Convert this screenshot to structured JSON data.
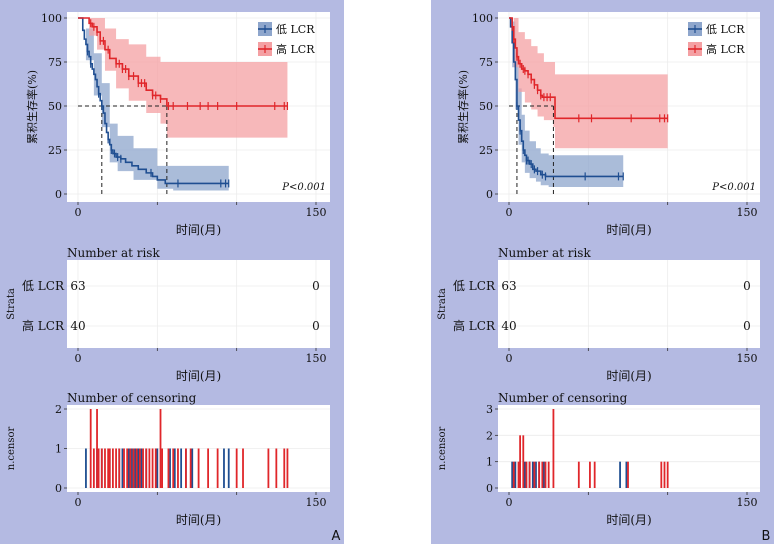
{
  "colors": {
    "low": "#1f4e91",
    "low_ci": "#8ea6cc",
    "high": "#e0262a",
    "high_ci": "#f4a0a3",
    "panel_bg": "#b4bae2"
  },
  "common": {
    "ylabel": "累积生存率(%)",
    "xlabel": "时间(月)",
    "legend": [
      "低 LCR",
      "高 LCR"
    ],
    "risk_title": "Number at risk",
    "risk_ylabel": "Strata",
    "strata": [
      "低 LCR",
      "高 LCR"
    ],
    "censor_title": "Number of censoring",
    "censor_ylabel": "n.censor",
    "pvalue": "P<0.001"
  },
  "chart_data": [
    {
      "type": "line",
      "panel_label": "A",
      "xlim": [
        0,
        150
      ],
      "ylim": [
        0,
        100
      ],
      "xticks": [
        0,
        50,
        100,
        150
      ],
      "xtick_labels": [
        "0",
        "",
        "",
        "150"
      ],
      "yticks": [
        0,
        25,
        50,
        75,
        100
      ],
      "median": {
        "low": 15,
        "high": 56
      },
      "series": [
        {
          "name": "低 LCR",
          "points": [
            [
              0,
              100
            ],
            [
              2,
              100
            ],
            [
              3,
              93
            ],
            [
              4,
              88
            ],
            [
              5,
              85
            ],
            [
              6,
              81
            ],
            [
              7,
              78
            ],
            [
              8,
              74
            ],
            [
              9,
              71
            ],
            [
              10,
              68
            ],
            [
              11,
              65
            ],
            [
              12,
              61
            ],
            [
              13,
              57
            ],
            [
              14,
              53
            ],
            [
              15,
              50
            ],
            [
              16,
              46
            ],
            [
              17,
              40
            ],
            [
              18,
              35
            ],
            [
              19,
              31
            ],
            [
              20,
              28
            ],
            [
              21,
              25
            ],
            [
              22,
              23
            ],
            [
              24,
              21
            ],
            [
              27,
              20
            ],
            [
              30,
              18
            ],
            [
              34,
              16
            ],
            [
              38,
              14
            ],
            [
              43,
              12
            ],
            [
              47,
              10
            ],
            [
              50,
              8
            ],
            [
              55,
              6
            ],
            [
              60,
              6
            ],
            [
              95,
              6
            ]
          ],
          "ci_upper": [
            [
              0,
              100
            ],
            [
              5,
              94
            ],
            [
              10,
              80
            ],
            [
              15,
              63
            ],
            [
              20,
              40
            ],
            [
              25,
              33
            ],
            [
              35,
              26
            ],
            [
              50,
              16
            ],
            [
              60,
              16
            ],
            [
              95,
              16
            ]
          ],
          "ci_lower": [
            [
              0,
              100
            ],
            [
              5,
              76
            ],
            [
              10,
              56
            ],
            [
              15,
              38
            ],
            [
              20,
              18
            ],
            [
              25,
              13
            ],
            [
              35,
              8
            ],
            [
              50,
              3
            ],
            [
              60,
              2
            ],
            [
              95,
              2
            ]
          ],
          "censor_x": [
            6,
            8,
            13,
            15,
            19,
            21,
            23,
            25,
            27,
            46,
            63,
            90,
            93,
            95
          ]
        },
        {
          "name": "高 LCR",
          "points": [
            [
              0,
              100
            ],
            [
              5,
              100
            ],
            [
              7,
              97
            ],
            [
              9,
              95
            ],
            [
              12,
              92
            ],
            [
              14,
              87
            ],
            [
              17,
              82
            ],
            [
              20,
              77
            ],
            [
              24,
              74
            ],
            [
              28,
              71
            ],
            [
              32,
              67
            ],
            [
              38,
              63
            ],
            [
              43,
              59
            ],
            [
              47,
              56
            ],
            [
              52,
              54
            ],
            [
              56,
              50
            ],
            [
              132,
              50
            ]
          ],
          "ci_upper": [
            [
              0,
              100
            ],
            [
              7,
              100
            ],
            [
              12,
              100
            ],
            [
              17,
              94
            ],
            [
              24,
              88
            ],
            [
              32,
              85
            ],
            [
              43,
              78
            ],
            [
              52,
              75
            ],
            [
              56,
              75
            ],
            [
              132,
              75
            ]
          ],
          "ci_lower": [
            [
              0,
              100
            ],
            [
              7,
              90
            ],
            [
              12,
              82
            ],
            [
              17,
              70
            ],
            [
              24,
              60
            ],
            [
              32,
              53
            ],
            [
              43,
              46
            ],
            [
              52,
              40
            ],
            [
              56,
              32
            ],
            [
              132,
              32
            ]
          ],
          "censor_x": [
            8,
            10,
            12,
            14,
            16,
            19,
            24,
            26,
            28,
            30,
            32,
            35,
            38,
            40,
            42,
            47,
            49,
            52,
            57,
            60,
            69,
            77,
            82,
            88,
            100,
            124,
            130,
            132
          ]
        }
      ],
      "risk": {
        "times": [
          0,
          150
        ],
        "low": [
          "63",
          "0"
        ],
        "high": [
          "40",
          "0"
        ]
      },
      "censor": {
        "ymax": 2,
        "yticks": [
          0,
          1,
          2
        ],
        "low": [
          [
            5,
            1
          ],
          [
            12,
            1
          ],
          [
            15,
            1
          ],
          [
            20,
            1
          ],
          [
            26,
            1
          ],
          [
            28,
            1
          ],
          [
            32,
            1
          ],
          [
            34,
            1
          ],
          [
            36,
            1
          ],
          [
            38,
            1
          ],
          [
            40,
            1
          ],
          [
            43,
            1
          ],
          [
            50,
            1
          ],
          [
            58,
            1
          ],
          [
            61,
            1
          ],
          [
            65,
            1
          ],
          [
            68,
            1
          ],
          [
            72,
            1
          ],
          [
            92,
            1
          ],
          [
            95,
            1
          ]
        ],
        "high": [
          [
            8,
            2
          ],
          [
            10,
            1
          ],
          [
            12,
            2
          ],
          [
            13,
            1
          ],
          [
            15,
            1
          ],
          [
            17,
            1
          ],
          [
            19,
            1
          ],
          [
            20,
            1
          ],
          [
            22,
            1
          ],
          [
            24,
            1
          ],
          [
            26,
            1
          ],
          [
            29,
            1
          ],
          [
            31,
            1
          ],
          [
            33,
            1
          ],
          [
            35,
            1
          ],
          [
            37,
            1
          ],
          [
            39,
            1
          ],
          [
            41,
            1
          ],
          [
            43,
            1
          ],
          [
            45,
            1
          ],
          [
            47,
            1
          ],
          [
            49,
            1
          ],
          [
            52,
            2
          ],
          [
            53,
            1
          ],
          [
            57,
            1
          ],
          [
            60,
            1
          ],
          [
            63,
            1
          ],
          [
            68,
            1
          ],
          [
            71,
            1
          ],
          [
            76,
            1
          ],
          [
            82,
            1
          ],
          [
            88,
            1
          ],
          [
            100,
            1
          ],
          [
            104,
            1
          ],
          [
            120,
            1
          ],
          [
            125,
            1
          ],
          [
            130,
            1
          ],
          [
            132,
            1
          ]
        ]
      }
    },
    {
      "type": "line",
      "panel_label": "B",
      "xlim": [
        0,
        150
      ],
      "ylim": [
        0,
        100
      ],
      "xticks": [
        0,
        50,
        100,
        150
      ],
      "xtick_labels": [
        "0",
        "",
        "",
        "150"
      ],
      "yticks": [
        0,
        25,
        50,
        75,
        100
      ],
      "median": {
        "low": 5,
        "high": 28
      },
      "series": [
        {
          "name": "低 LCR",
          "points": [
            [
              0,
              100
            ],
            [
              1,
              95
            ],
            [
              2,
              86
            ],
            [
              3,
              75
            ],
            [
              4,
              65
            ],
            [
              5,
              50
            ],
            [
              6,
              42
            ],
            [
              7,
              36
            ],
            [
              8,
              30
            ],
            [
              9,
              25
            ],
            [
              10,
              22
            ],
            [
              11,
              19
            ],
            [
              13,
              17
            ],
            [
              15,
              14
            ],
            [
              17,
              13
            ],
            [
              20,
              11
            ],
            [
              23,
              10
            ],
            [
              25,
              10
            ],
            [
              72,
              10
            ]
          ],
          "ci_upper": [
            [
              0,
              100
            ],
            [
              2,
              98
            ],
            [
              4,
              82
            ],
            [
              6,
              60
            ],
            [
              8,
              45
            ],
            [
              10,
              36
            ],
            [
              13,
              30
            ],
            [
              17,
              26
            ],
            [
              20,
              23
            ],
            [
              25,
              22
            ],
            [
              72,
              22
            ]
          ],
          "ci_lower": [
            [
              0,
              100
            ],
            [
              2,
              72
            ],
            [
              4,
              48
            ],
            [
              6,
              28
            ],
            [
              8,
              18
            ],
            [
              10,
              12
            ],
            [
              13,
              9
            ],
            [
              17,
              7
            ],
            [
              20,
              5
            ],
            [
              25,
              4
            ],
            [
              72,
              4
            ]
          ],
          "censor_x": [
            5,
            7,
            9,
            11,
            12,
            14,
            16,
            18,
            21,
            23,
            48,
            69,
            72
          ]
        },
        {
          "name": "高 LCR",
          "points": [
            [
              0,
              100
            ],
            [
              1,
              100
            ],
            [
              2,
              95
            ],
            [
              3,
              88
            ],
            [
              4,
              83
            ],
            [
              5,
              78
            ],
            [
              6,
              74
            ],
            [
              8,
              71
            ],
            [
              10,
              70
            ],
            [
              12,
              68
            ],
            [
              14,
              65
            ],
            [
              16,
              62
            ],
            [
              18,
              59
            ],
            [
              20,
              56
            ],
            [
              21,
              55
            ],
            [
              28,
              55
            ],
            [
              29,
              43
            ],
            [
              100,
              43
            ]
          ],
          "ci_upper": [
            [
              0,
              100
            ],
            [
              3,
              100
            ],
            [
              6,
              92
            ],
            [
              10,
              88
            ],
            [
              14,
              84
            ],
            [
              18,
              80
            ],
            [
              22,
              75
            ],
            [
              28,
              75
            ],
            [
              29,
              68
            ],
            [
              100,
              68
            ]
          ],
          "ci_lower": [
            [
              0,
              100
            ],
            [
              3,
              72
            ],
            [
              6,
              58
            ],
            [
              10,
              52
            ],
            [
              14,
              48
            ],
            [
              18,
              44
            ],
            [
              22,
              42
            ],
            [
              28,
              38
            ],
            [
              29,
              26
            ],
            [
              100,
              26
            ]
          ],
          "censor_x": [
            2,
            3,
            5,
            7,
            9,
            10,
            12,
            14,
            16,
            18,
            20,
            22,
            24,
            26,
            44,
            52,
            77,
            95,
            98,
            100
          ]
        }
      ],
      "risk": {
        "times": [
          0,
          150
        ],
        "low": [
          "63",
          "0"
        ],
        "high": [
          "40",
          "0"
        ]
      },
      "censor": {
        "ymax": 3,
        "yticks": [
          0,
          1,
          2,
          3
        ],
        "low": [
          [
            2,
            1
          ],
          [
            4,
            1
          ],
          [
            7,
            1
          ],
          [
            10,
            1
          ],
          [
            13,
            1
          ],
          [
            15,
            1
          ],
          [
            17,
            1
          ],
          [
            19,
            1
          ],
          [
            22,
            1
          ],
          [
            70,
            1
          ],
          [
            74,
            1
          ]
        ],
        "high": [
          [
            3,
            1
          ],
          [
            6,
            1
          ],
          [
            7,
            2
          ],
          [
            9,
            2
          ],
          [
            11,
            1
          ],
          [
            13,
            1
          ],
          [
            16,
            1
          ],
          [
            19,
            1
          ],
          [
            21,
            1
          ],
          [
            23,
            1
          ],
          [
            25,
            1
          ],
          [
            28,
            3
          ],
          [
            44,
            1
          ],
          [
            51,
            1
          ],
          [
            54,
            1
          ],
          [
            75,
            1
          ],
          [
            96,
            1
          ],
          [
            98,
            1
          ],
          [
            100,
            1
          ]
        ]
      }
    }
  ]
}
